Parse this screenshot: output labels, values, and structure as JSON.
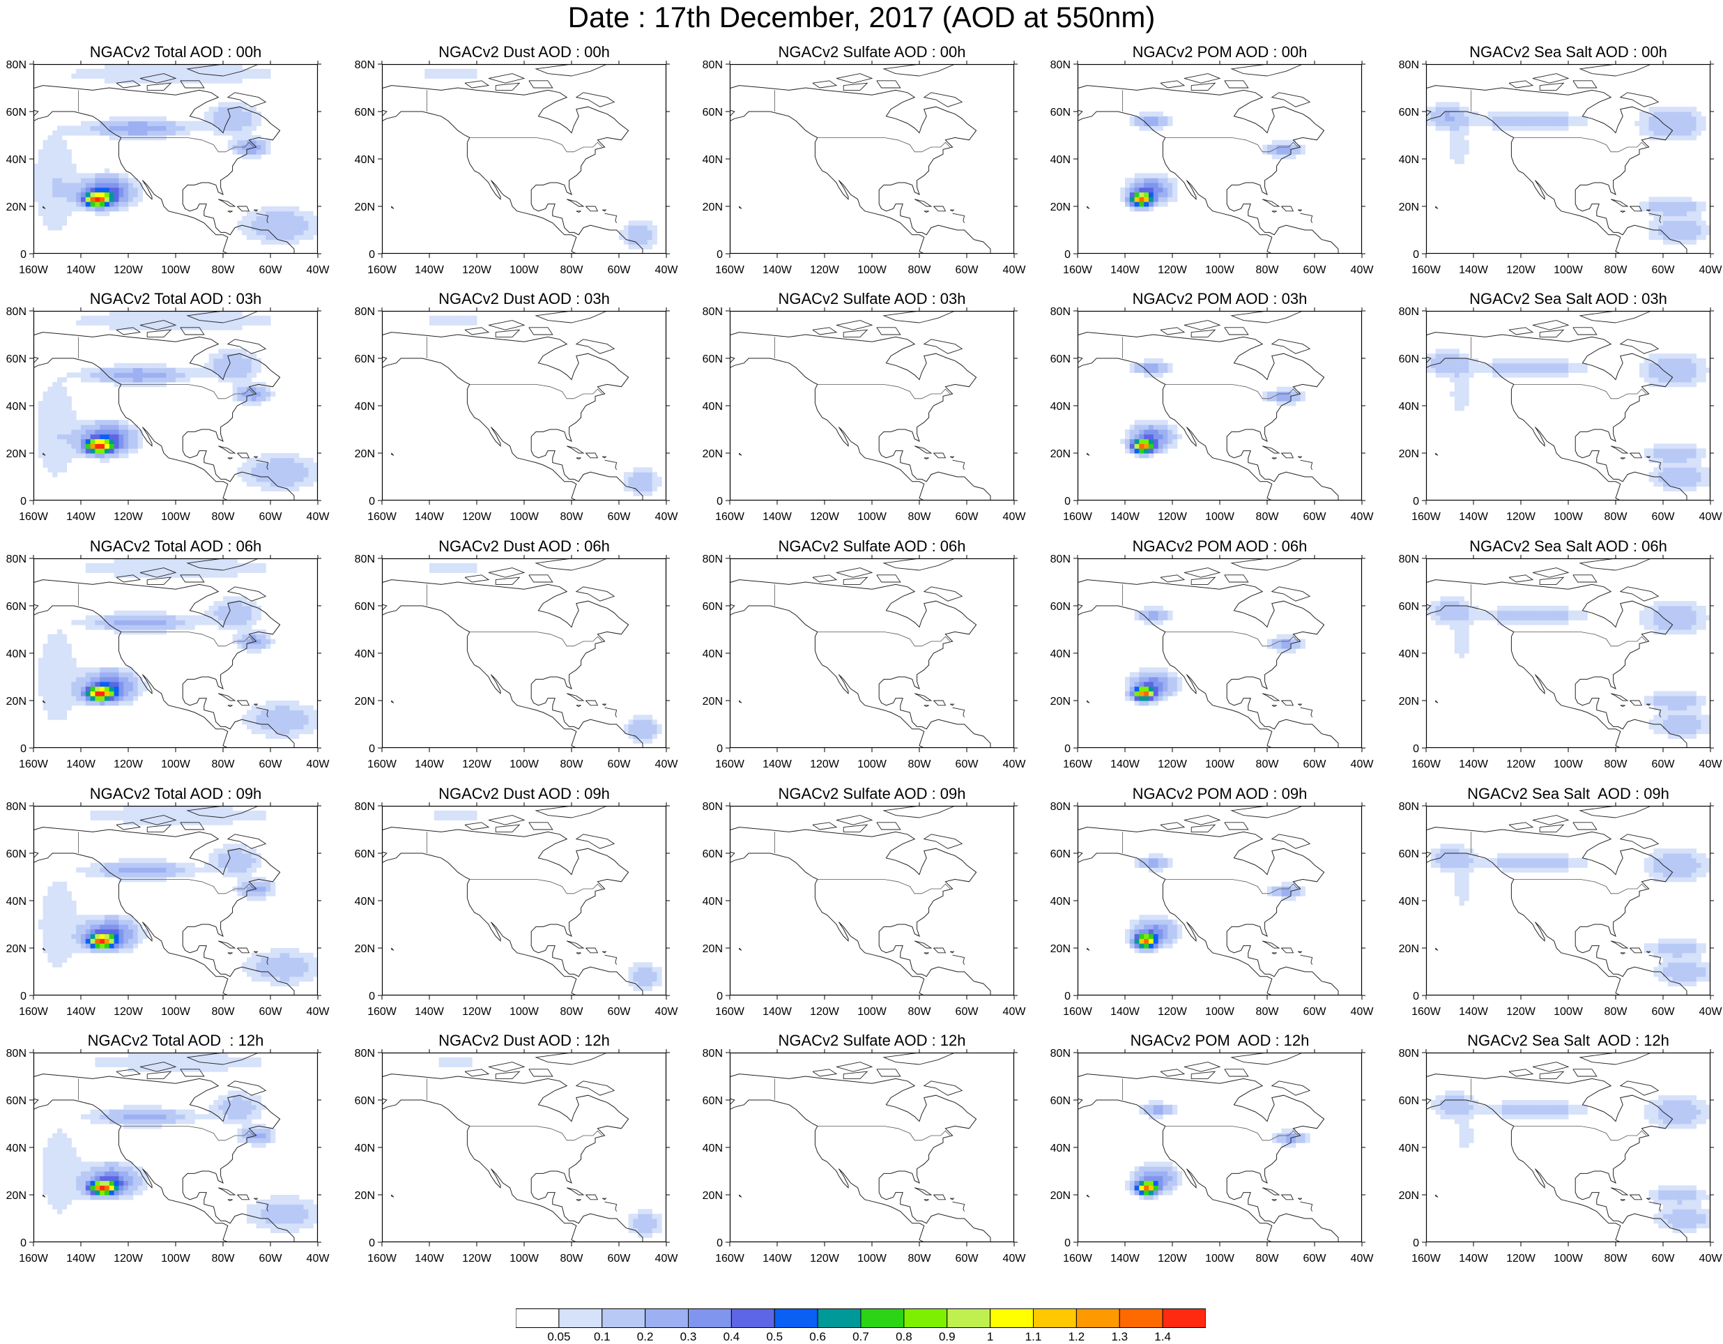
{
  "title": "Date : 17th December, 2017 (AOD at 550nm)",
  "species": [
    "Total",
    "Dust",
    "Sulfate",
    "POM",
    "Sea Salt"
  ],
  "panel_titles": [
    [
      "NGACv2 Total AOD : 00h",
      "NGACv2 Dust AOD : 00h",
      "NGACv2 Sulfate AOD : 00h",
      "NGACv2 POM AOD : 00h",
      "NGACv2 Sea Salt AOD : 00h"
    ],
    [
      "NGACv2 Total AOD : 03h",
      "NGACv2 Dust AOD : 03h",
      "NGACv2 Sulfate AOD : 03h",
      "NGACv2 POM AOD : 03h",
      "NGACv2 Sea Salt AOD : 03h"
    ],
    [
      "NGACv2 Total AOD : 06h",
      "NGACv2 Dust AOD : 06h",
      "NGACv2 Sulfate AOD : 06h",
      "NGACv2 POM AOD : 06h",
      "NGACv2 Sea Salt AOD : 06h"
    ],
    [
      "NGACv2 Total AOD : 09h",
      "NGACv2 Dust AOD : 09h",
      "NGACv2 Sulfate AOD : 09h",
      "NGACv2 POM AOD : 09h",
      "NGACv2 Sea Salt  AOD : 09h"
    ],
    [
      "NGACv2 Total AOD  : 12h",
      "NGACv2 Dust AOD : 12h",
      "NGACv2 Sulfate AOD : 12h",
      "NGACv2 POM  AOD : 12h",
      "NGACv2 Sea Salt  AOD : 12h"
    ]
  ],
  "lon_ticks": [
    "160W",
    "140W",
    "120W",
    "100W",
    "80W",
    "60W",
    "40W"
  ],
  "lat_ticks": [
    "0",
    "20N",
    "40N",
    "60N",
    "80N"
  ],
  "lon_range": [
    -160,
    -40
  ],
  "lat_range": [
    0,
    80
  ],
  "colorbar": {
    "labels": [
      "0.05",
      "0.1",
      "0.2",
      "0.3",
      "0.4",
      "0.5",
      "0.6",
      "0.7",
      "0.8",
      "0.9",
      "1",
      "1.1",
      "1.2",
      "1.3",
      "1.4"
    ],
    "colors": [
      "#ffffff",
      "#d6e1fa",
      "#b8c9f6",
      "#9cb0f2",
      "#7f95ee",
      "#5d66e4",
      "#0a5ff5",
      "#009999",
      "#2bd414",
      "#7cf000",
      "#c0f050",
      "#ffff00",
      "#ffc800",
      "#ff9900",
      "#ff6a00",
      "#ff2a10"
    ]
  },
  "map_data": {
    "type": "contour-fill",
    "variable": "AOD at 550nm",
    "plumes": {
      "Total": [
        {
          "lon": -132,
          "lat": 23,
          "peak": 1.2,
          "rlon": 6,
          "rlat": 3
        },
        {
          "lon": -128,
          "lat": 26,
          "peak": 0.5,
          "rlon": 12,
          "rlat": 7
        },
        {
          "lon": -115,
          "lat": 53,
          "peak": 0.3,
          "rlon": 22,
          "rlat": 4
        },
        {
          "lon": -75,
          "lat": 57,
          "peak": 0.2,
          "rlon": 12,
          "rlat": 7
        },
        {
          "lon": -67,
          "lat": 45,
          "peak": 0.3,
          "rlon": 8,
          "rlat": 4
        },
        {
          "lon": -55,
          "lat": 12,
          "peak": 0.2,
          "rlon": 18,
          "rlat": 8
        },
        {
          "lon": -150,
          "lat": 30,
          "peak": 0.1,
          "rlon": 12,
          "rlat": 28
        },
        {
          "lon": -100,
          "lat": 76,
          "peak": 0.1,
          "rlon": 60,
          "rlat": 6
        }
      ],
      "Dust": [
        {
          "lon": -50,
          "lat": 8,
          "peak": 0.2,
          "rlon": 8,
          "rlat": 6
        },
        {
          "lon": -130,
          "lat": 76,
          "peak": 0.1,
          "rlon": 22,
          "rlat": 2
        }
      ],
      "Sulfate": [],
      "POM": [
        {
          "lon": -132,
          "lat": 23,
          "peak": 1.2,
          "rlon": 5,
          "rlat": 3
        },
        {
          "lon": -128,
          "lat": 27,
          "peak": 0.4,
          "rlon": 10,
          "rlat": 6
        },
        {
          "lon": -128,
          "lat": 56,
          "peak": 0.3,
          "rlon": 8,
          "rlat": 3
        },
        {
          "lon": -72,
          "lat": 44,
          "peak": 0.3,
          "rlon": 8,
          "rlat": 3
        }
      ],
      "Sea Salt": [
        {
          "lon": -115,
          "lat": 56,
          "peak": 0.2,
          "rlon": 25,
          "rlat": 4
        },
        {
          "lon": -55,
          "lat": 20,
          "peak": 0.2,
          "rlon": 14,
          "rlat": 4
        },
        {
          "lon": -52,
          "lat": 10,
          "peak": 0.2,
          "rlon": 14,
          "rlat": 6
        },
        {
          "lon": -55,
          "lat": 55,
          "peak": 0.2,
          "rlon": 15,
          "rlat": 8
        },
        {
          "lon": -150,
          "lat": 58,
          "peak": 0.2,
          "rlon": 10,
          "rlat": 6
        },
        {
          "lon": -145,
          "lat": 45,
          "peak": 0.1,
          "rlon": 5,
          "rlat": 10
        }
      ]
    }
  }
}
